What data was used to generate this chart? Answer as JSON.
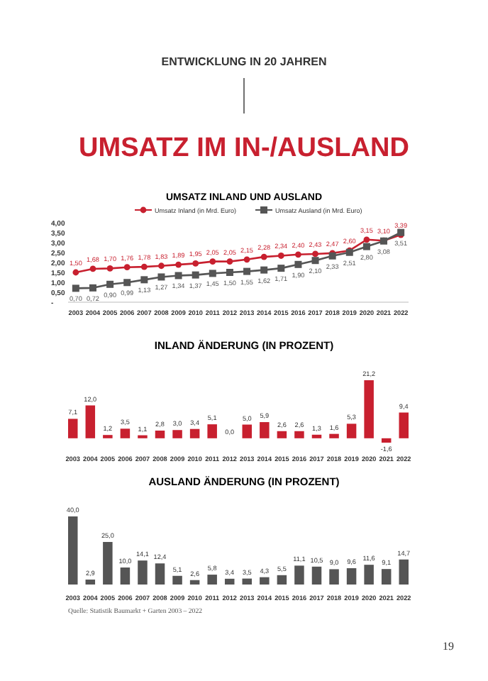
{
  "chart_data": [
    {
      "type": "line",
      "title": "UMSATZ INLAND UND AUSLAND",
      "annotations": [
        "ENTWICKLUNG IN 20 JAHREN",
        "UMSATZ IM IN-/AUSLAND"
      ],
      "categories": [
        "2003",
        "2004",
        "2005",
        "2006",
        "2007",
        "2008",
        "2009",
        "2010",
        "2011",
        "2012",
        "2013",
        "2014",
        "2015",
        "2016",
        "2017",
        "2018",
        "2019",
        "2020",
        "2021",
        "2022"
      ],
      "series": [
        {
          "name": "Umsatz Inland (in Mrd. Euro)",
          "color": "#c8202f",
          "marker": "circle",
          "values": [
            1.5,
            1.68,
            1.7,
            1.76,
            1.78,
            1.83,
            1.89,
            1.95,
            2.05,
            2.05,
            2.15,
            2.28,
            2.34,
            2.4,
            2.43,
            2.47,
            2.6,
            3.15,
            3.1,
            3.39
          ],
          "value_labels": [
            "1,50",
            "1,68",
            "1,70",
            "1,76",
            "1,78",
            "1,83",
            "1,89",
            "1,95",
            "2,05",
            "2,05",
            "2,15",
            "2,28",
            "2,34",
            "2,40",
            "2,43",
            "2,47",
            "2,60",
            "3,15",
            "3,10",
            "3,39"
          ]
        },
        {
          "name": "Umsatz Ausland (in Mrd. Euro)",
          "color": "#555555",
          "marker": "square",
          "values": [
            0.7,
            0.72,
            0.9,
            0.99,
            1.13,
            1.27,
            1.34,
            1.37,
            1.45,
            1.5,
            1.55,
            1.62,
            1.71,
            1.9,
            2.1,
            2.33,
            2.51,
            2.8,
            3.08,
            3.51
          ],
          "value_labels": [
            "0,70",
            "0,72",
            "0,90",
            "0,99",
            "1,13",
            "1,27",
            "1,34",
            "1,37",
            "1,45",
            "1,50",
            "1,55",
            "1,62",
            "1,71",
            "1,90",
            "2,10",
            "2,33",
            "2,51",
            "2,80",
            "3,08",
            "3,51"
          ]
        }
      ],
      "ylim": [
        0,
        4
      ],
      "yticks": [
        {
          "value": 0,
          "label": "-"
        },
        {
          "value": 0.5,
          "label": "0,50"
        },
        {
          "value": 1,
          "label": "1,00"
        },
        {
          "value": 1.5,
          "label": "1,50"
        },
        {
          "value": 2,
          "label": "2,00"
        },
        {
          "value": 2.5,
          "label": "2,50"
        },
        {
          "value": 3,
          "label": "3,00"
        },
        {
          "value": 3.5,
          "label": "3,50"
        },
        {
          "value": 4,
          "label": "4,00"
        }
      ],
      "legend": "top"
    },
    {
      "type": "bar",
      "title": "INLAND ÄNDERUNG (IN PROZENT)",
      "categories": [
        "2003",
        "2004",
        "2005",
        "2006",
        "2007",
        "2008",
        "2009",
        "2010",
        "2011",
        "2012",
        "2013",
        "2014",
        "2015",
        "2016",
        "2017",
        "2018",
        "2019",
        "2020",
        "2021",
        "2022"
      ],
      "values": [
        7.1,
        12.0,
        1.2,
        3.5,
        1.1,
        2.8,
        3.0,
        3.4,
        5.1,
        0.0,
        5.0,
        5.9,
        2.6,
        2.6,
        1.3,
        1.6,
        5.3,
        21.2,
        -1.6,
        9.4
      ],
      "color": "#c8202f",
      "value_labels": [
        "7,1",
        "12,0",
        "1,2",
        "3,5",
        "1,1",
        "2,8",
        "3,0",
        "3,4",
        "5,1",
        "0,0",
        "5,0",
        "5,9",
        "2,6",
        "2,6",
        "1,3",
        "1,6",
        "5,3",
        "21,2",
        "-1,6",
        "9,4"
      ]
    },
    {
      "type": "bar",
      "title": "AUSLAND ÄNDERUNG (IN PROZENT)",
      "categories": [
        "2003",
        "2004",
        "2005",
        "2006",
        "2007",
        "2008",
        "2009",
        "2010",
        "2011",
        "2012",
        "2013",
        "2014",
        "2015",
        "2016",
        "2017",
        "2018",
        "2019",
        "2020",
        "2021",
        "2022"
      ],
      "values": [
        40.0,
        2.9,
        25.0,
        10.0,
        14.1,
        12.4,
        5.1,
        2.6,
        5.8,
        3.4,
        3.5,
        4.3,
        5.5,
        11.1,
        10.5,
        9.0,
        9.6,
        11.6,
        9.1,
        14.7
      ],
      "color": "#555555",
      "value_labels": [
        "40,0",
        "2,9",
        "25,0",
        "10,0",
        "14,1",
        "12,4",
        "5,1",
        "2,6",
        "5,8",
        "3,4",
        "3,5",
        "4,3",
        "5,5",
        "11,1",
        "10,5",
        "9,0",
        "9,6",
        "11,6",
        "9,1",
        "14,7"
      ],
      "annotations": [
        "Quelle: Statistik Baumarkt + Garten 2003 – 2022",
        "19"
      ]
    }
  ]
}
